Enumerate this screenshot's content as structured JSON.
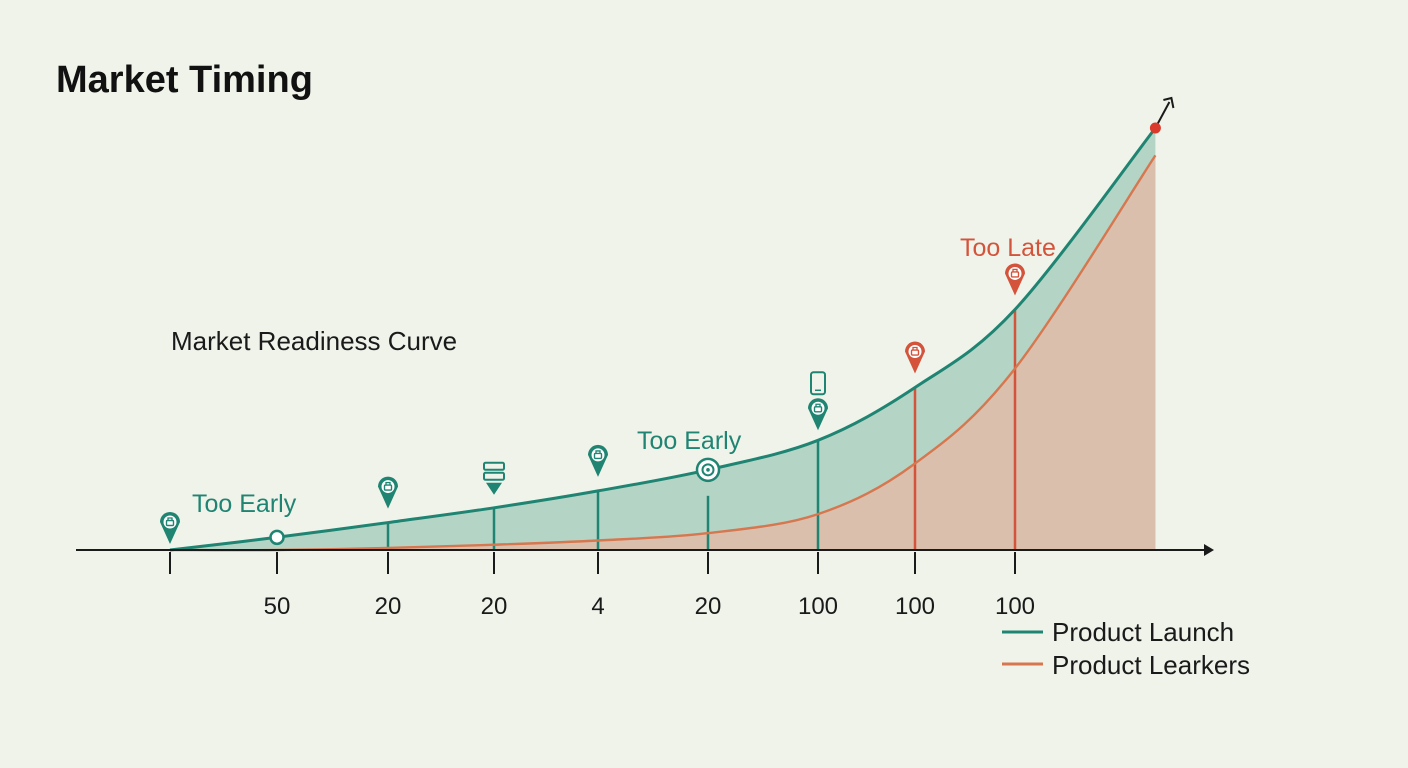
{
  "chart_data": {
    "type": "area",
    "title": "Market Timing",
    "subtitle": "Market Readiness Curve",
    "xlabel": "",
    "ylabel": "",
    "tick_labels": [
      "",
      "50",
      "20",
      "20",
      "4",
      "20",
      "100",
      "100",
      "100"
    ],
    "series": [
      {
        "name": "Product Launch",
        "color": "#1f8472",
        "fill": "#a9cfbe",
        "x": [
          0,
          1,
          2,
          3,
          4,
          5,
          6,
          7,
          8,
          9.3
        ],
        "values": [
          0,
          0.06,
          0.13,
          0.2,
          0.28,
          0.38,
          0.52,
          0.77,
          1.14,
          2.0
        ]
      },
      {
        "name": "Product Learkers",
        "color": "#d6774f",
        "fill": "#e8b5a1",
        "x": [
          0,
          1,
          2,
          3,
          4,
          5,
          6,
          7,
          8,
          9.3
        ],
        "values": [
          0,
          0.0,
          0.01,
          0.025,
          0.045,
          0.08,
          0.17,
          0.41,
          0.86,
          1.87
        ]
      }
    ],
    "annotations": [
      {
        "text": "Too Early",
        "color": "#1f8472"
      },
      {
        "text": "Too Early",
        "color": "#1f8472"
      },
      {
        "text": "Too Late",
        "color": "#d4533b"
      }
    ],
    "markers": [
      {
        "x": 0,
        "kind": "pin",
        "color": "#1f8472"
      },
      {
        "x": 1,
        "kind": "circle",
        "color": "#1f8472"
      },
      {
        "x": 2,
        "kind": "pin",
        "color": "#1f8472"
      },
      {
        "x": 3,
        "kind": "server",
        "color": "#1f8472"
      },
      {
        "x": 4,
        "kind": "pin",
        "color": "#1f8472"
      },
      {
        "x": 5,
        "kind": "target",
        "color": "#1f8472"
      },
      {
        "x": 6,
        "kind": "pin-phone",
        "color": "#1f8472"
      },
      {
        "x": 7,
        "kind": "pin",
        "color": "#d4533b"
      },
      {
        "x": 8,
        "kind": "pin",
        "color": "#d4533b"
      }
    ],
    "peak_color": "#d93a2b",
    "grid": false,
    "legend_position": "bottom-right"
  }
}
